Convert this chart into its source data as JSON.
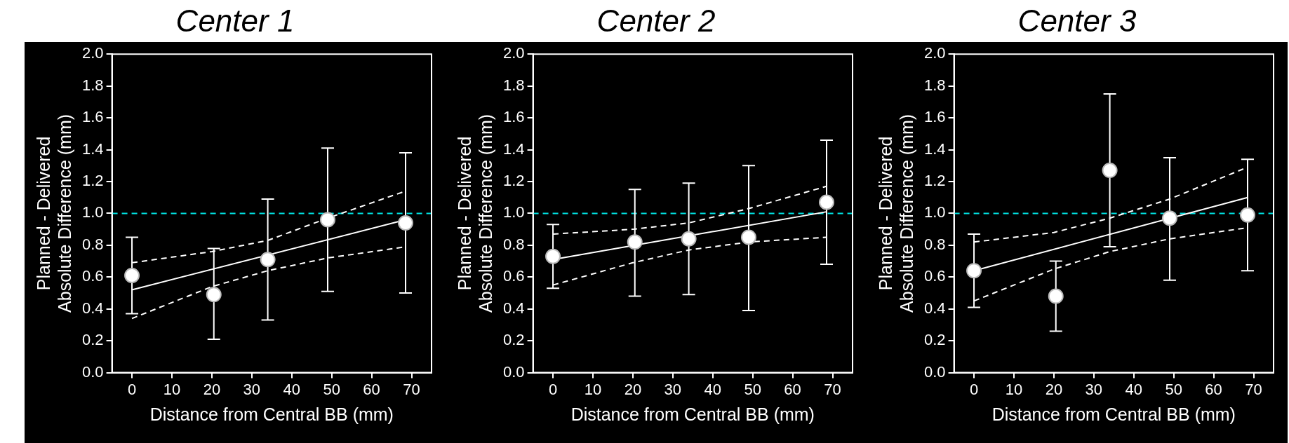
{
  "chart_data": [
    {
      "type": "scatter",
      "title": "Center 1",
      "xlabel": "Distance from Central BB (mm)",
      "ylabel": "Planned - Delivered\nAbsolute Difference (mm)",
      "xlim": [
        -5,
        75
      ],
      "xticks": [
        0,
        10,
        20,
        30,
        40,
        50,
        60,
        70
      ],
      "ylim": [
        0,
        2.0
      ],
      "yticks": [
        {
          "value": 0,
          "label": "0.0"
        },
        0.2,
        0.4,
        0.6,
        0.8,
        {
          "value": 1,
          "label": "1.0"
        },
        1.2,
        1.4,
        1.6,
        1.8,
        {
          "value": 2,
          "label": "2.0"
        }
      ],
      "ref_lines": [
        {
          "axis": "y",
          "value": 1.0,
          "color": "#00e5e5",
          "line_style": "dashed"
        }
      ],
      "series": [
        {
          "color": "#ffffff",
          "marker": "circle",
          "x": [
            0,
            20.5,
            34,
            49,
            68.5
          ],
          "values": [
            0.61,
            0.49,
            0.71,
            0.96,
            0.94
          ],
          "errors": [
            [
              0.37,
              0.85
            ],
            [
              0.21,
              0.78
            ],
            [
              0.33,
              1.09
            ],
            [
              0.51,
              1.41
            ],
            [
              0.5,
              1.38
            ]
          ]
        },
        {
          "type": "line",
          "color": "#ffffff",
          "line_style": "solid",
          "x": [
            0,
            68.5
          ],
          "values": [
            0.52,
            0.96
          ]
        },
        {
          "type": "line",
          "color": "#ffffff",
          "line_style": "dashed",
          "x": [
            0,
            20,
            34,
            49,
            68.5
          ],
          "values": [
            0.69,
            0.76,
            0.83,
            0.97,
            1.14
          ]
        },
        {
          "type": "line",
          "color": "#ffffff",
          "line_style": "dashed",
          "x": [
            0,
            20,
            34,
            49,
            68.5
          ],
          "values": [
            0.34,
            0.54,
            0.64,
            0.72,
            0.79
          ]
        }
      ]
    },
    {
      "type": "scatter",
      "title": "Center 2",
      "xlabel": "Distance from Central BB (mm)",
      "ylabel": "Planned - Delivered\nAbsolute Difference (mm)",
      "xlim": [
        -5,
        75
      ],
      "xticks": [
        0,
        10,
        20,
        30,
        40,
        50,
        60,
        70
      ],
      "ylim": [
        0,
        2.0
      ],
      "yticks": [
        {
          "value": 0,
          "label": "0.0"
        },
        0.2,
        0.4,
        0.6,
        0.8,
        {
          "value": 1,
          "label": "1.0"
        },
        1.2,
        1.4,
        1.6,
        1.8,
        {
          "value": 2,
          "label": "2.0"
        }
      ],
      "ref_lines": [
        {
          "axis": "y",
          "value": 1.0,
          "color": "#00e5e5",
          "line_style": "dashed"
        }
      ],
      "series": [
        {
          "color": "#ffffff",
          "marker": "circle",
          "x": [
            0,
            20.5,
            34,
            49,
            68.5
          ],
          "values": [
            0.73,
            0.82,
            0.84,
            0.85,
            1.07
          ],
          "errors": [
            [
              0.53,
              0.93
            ],
            [
              0.48,
              1.15
            ],
            [
              0.49,
              1.19
            ],
            [
              0.39,
              1.3
            ],
            [
              0.68,
              1.46
            ]
          ]
        },
        {
          "type": "line",
          "color": "#ffffff",
          "line_style": "solid",
          "x": [
            0,
            68.5
          ],
          "values": [
            0.71,
            1.01
          ]
        },
        {
          "type": "line",
          "color": "#ffffff",
          "line_style": "dashed",
          "x": [
            0,
            20,
            34,
            49,
            68.5
          ],
          "values": [
            0.87,
            0.9,
            0.94,
            1.03,
            1.17
          ]
        },
        {
          "type": "line",
          "color": "#ffffff",
          "line_style": "dashed",
          "x": [
            0,
            20,
            34,
            49,
            68.5
          ],
          "values": [
            0.55,
            0.69,
            0.77,
            0.82,
            0.85
          ]
        }
      ]
    },
    {
      "type": "scatter",
      "title": "Center 3",
      "xlabel": "Distance from Central BB (mm)",
      "ylabel": "Planned - Delivered\nAbsolute Difference (mm)",
      "xlim": [
        -5,
        75
      ],
      "xticks": [
        0,
        10,
        20,
        30,
        40,
        50,
        60,
        70
      ],
      "ylim": [
        0,
        2.0
      ],
      "yticks": [
        {
          "value": 0,
          "label": "0.0"
        },
        0.2,
        0.4,
        0.6,
        0.8,
        {
          "value": 1,
          "label": "1.0"
        },
        1.2,
        1.4,
        1.6,
        1.8,
        {
          "value": 2,
          "label": "2.0"
        }
      ],
      "ref_lines": [
        {
          "axis": "y",
          "value": 1.0,
          "color": "#00e5e5",
          "line_style": "dashed"
        }
      ],
      "series": [
        {
          "color": "#ffffff",
          "marker": "circle",
          "x": [
            0,
            20.5,
            34,
            49,
            68.5
          ],
          "values": [
            0.64,
            0.48,
            1.27,
            0.97,
            0.99
          ],
          "errors": [
            [
              0.41,
              0.87
            ],
            [
              0.26,
              0.7
            ],
            [
              0.79,
              1.75
            ],
            [
              0.58,
              1.35
            ],
            [
              0.64,
              1.34
            ]
          ]
        },
        {
          "type": "line",
          "color": "#ffffff",
          "line_style": "solid",
          "x": [
            0,
            68.5
          ],
          "values": [
            0.64,
            1.1
          ]
        },
        {
          "type": "line",
          "color": "#ffffff",
          "line_style": "dashed",
          "x": [
            0,
            20,
            34,
            49,
            68.5
          ],
          "values": [
            0.82,
            0.88,
            0.97,
            1.09,
            1.29
          ]
        },
        {
          "type": "line",
          "color": "#ffffff",
          "line_style": "dashed",
          "x": [
            0,
            20,
            34,
            49,
            68.5
          ],
          "values": [
            0.45,
            0.65,
            0.76,
            0.84,
            0.91
          ]
        }
      ]
    }
  ]
}
